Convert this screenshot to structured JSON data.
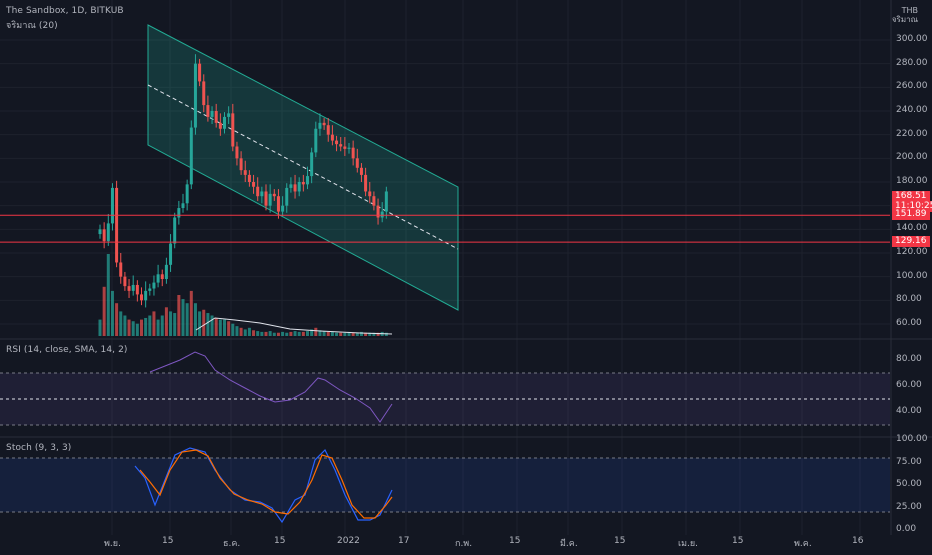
{
  "header": {
    "symbol_line": "The Sandbox, 1D, BITKUB",
    "indicator_label": "จริมาณ (20)"
  },
  "currency": {
    "code": "THB",
    "sub": "จริมาณ"
  },
  "price_axis": {
    "ticks": [
      "300.00",
      "280.00",
      "260.00",
      "240.00",
      "220.00",
      "200.00",
      "180.00",
      "160.00",
      "140.00",
      "120.00",
      "100.00",
      "80.00",
      "60.00"
    ]
  },
  "price_tags": {
    "last_price": "168.51",
    "countdown": "11:10:25",
    "level_1": "151.89",
    "level_2": "129.16"
  },
  "rsi": {
    "label": "RSI (14, close, SMA, 14, 2)",
    "ticks": [
      "80.00",
      "60.00",
      "40.00"
    ]
  },
  "stoch": {
    "label": "Stoch (9, 3, 3)",
    "ticks": [
      "100.00",
      "75.00",
      "50.00",
      "25.00",
      "0.00"
    ]
  },
  "time_axis": {
    "ticks": [
      "พ.ย.",
      "15",
      "ธ.ค.",
      "15",
      "2022",
      "17",
      "ก.พ.",
      "15",
      "มี.ค.",
      "15",
      "เม.ย.",
      "15",
      "พ.ค.",
      "16"
    ]
  },
  "colors": {
    "background": "#131722",
    "up": "#26a69a",
    "down": "#ef5350",
    "level_line": "#f23645",
    "channel": "#22ab94",
    "rsi_line": "#7e57c2",
    "stoch_k": "#2962ff",
    "stoch_d": "#ff6d00"
  }
}
